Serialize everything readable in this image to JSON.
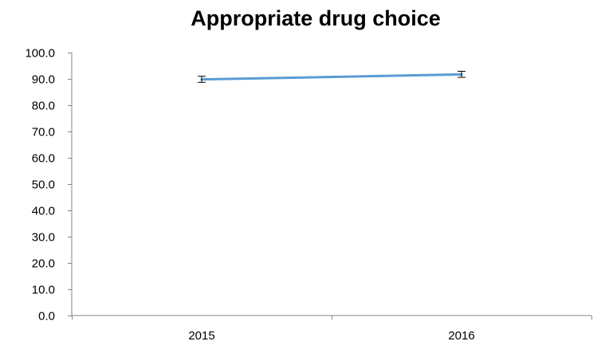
{
  "chart_data": {
    "type": "line",
    "title": "Appropriate drug choice",
    "xlabel": "",
    "ylabel": "",
    "categories": [
      "2015",
      "2016"
    ],
    "series": [
      {
        "values": [
          89.8,
          91.7
        ],
        "error_low": [
          88.7,
          90.6
        ],
        "error_high": [
          91.0,
          92.9
        ],
        "color": "#5B9BD5"
      }
    ],
    "ylim": [
      0,
      100
    ],
    "yticks": [
      "0.0",
      "10.0",
      "20.0",
      "30.0",
      "40.0",
      "50.0",
      "60.0",
      "70.0",
      "80.0",
      "90.0",
      "100.0"
    ],
    "grid": false,
    "legend": "none",
    "error_bar_color": "#000000"
  }
}
